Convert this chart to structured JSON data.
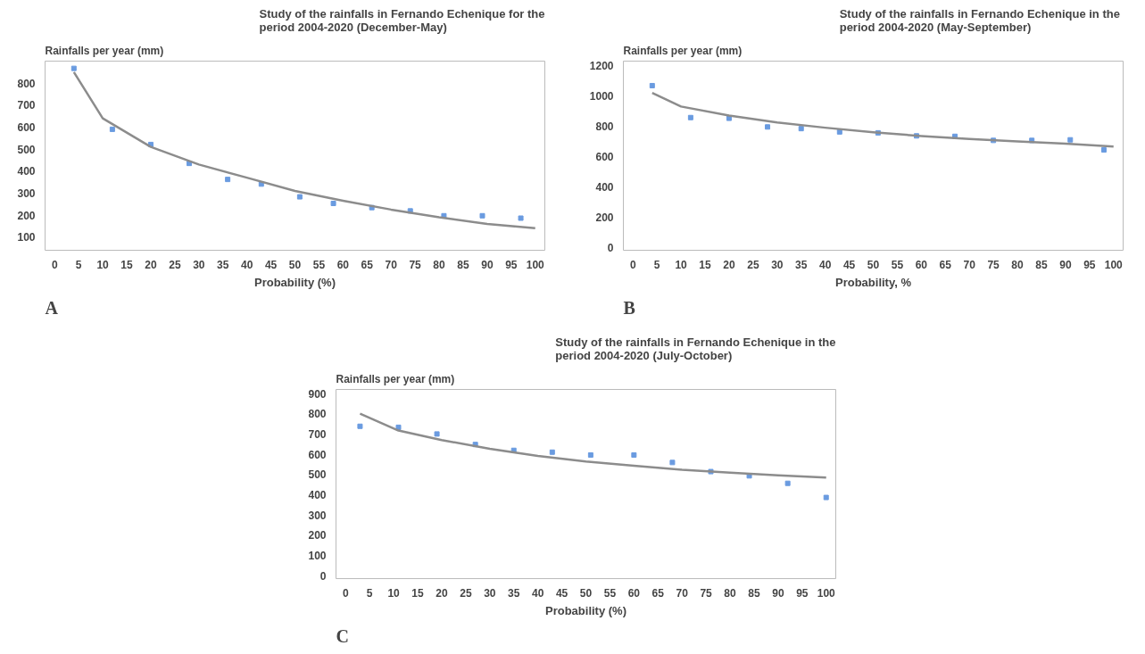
{
  "chart_data": [
    {
      "type": "scatter",
      "title": "Study of the rainfalls in Fernando Echenique for the period 2004-2020 (December-May)",
      "xlabel": "Probability (%)",
      "ylabel": "Rainfalls per year (mm)",
      "marker": "square",
      "xlim": [
        -2,
        102
      ],
      "xticks": [
        0,
        5,
        10,
        15,
        20,
        25,
        30,
        35,
        40,
        45,
        50,
        55,
        60,
        65,
        70,
        75,
        80,
        85,
        90,
        95,
        100
      ],
      "ylim": [
        40,
        900
      ],
      "yticks": [
        100,
        200,
        300,
        400,
        500,
        600,
        700,
        800
      ],
      "annotations": [
        "A"
      ],
      "series": [
        {
          "color": "#6a9be0",
          "x": [
            4,
            12,
            20,
            28,
            36,
            43,
            51,
            58,
            66,
            74,
            81,
            89,
            97
          ],
          "values": [
            867,
            590,
            521,
            435,
            362,
            341,
            283,
            253,
            234,
            219,
            197,
            197,
            186
          ]
        },
        {
          "type": "line",
          "marker": "none",
          "color": "#8c8c8c",
          "x": [
            4,
            10,
            20,
            30,
            40,
            50,
            60,
            70,
            80,
            90,
            100
          ],
          "values": [
            850,
            640,
            510,
            430,
            370,
            310,
            265,
            225,
            190,
            160,
            140
          ]
        }
      ]
    },
    {
      "type": "scatter",
      "title": "Study of the  rainfalls in Fernando Echenique in the period 2004-2020 (May-September)",
      "xlabel": "Probability, %",
      "ylabel": "Rainfalls per year (mm)",
      "marker": "square",
      "xlim": [
        -2,
        102
      ],
      "xticks": [
        0,
        5,
        10,
        15,
        20,
        25,
        30,
        35,
        40,
        45,
        50,
        55,
        60,
        65,
        70,
        75,
        80,
        85,
        90,
        95,
        100
      ],
      "ylim": [
        -20,
        1230
      ],
      "yticks": [
        0,
        200,
        400,
        600,
        800,
        1000,
        1200
      ],
      "annotations": [
        "B"
      ],
      "series": [
        {
          "color": "#6a9be0",
          "x": [
            4,
            12,
            20,
            28,
            35,
            43,
            51,
            59,
            67,
            75,
            83,
            91,
            98
          ],
          "values": [
            1068,
            857,
            852,
            795,
            784,
            762,
            756,
            736,
            733,
            706,
            706,
            710,
            643
          ]
        },
        {
          "type": "line",
          "marker": "none",
          "color": "#8c8c8c",
          "x": [
            4,
            10,
            20,
            30,
            40,
            50,
            60,
            70,
            80,
            90,
            100
          ],
          "values": [
            1020,
            930,
            870,
            825,
            790,
            760,
            735,
            715,
            700,
            685,
            665
          ]
        }
      ]
    },
    {
      "type": "scatter",
      "title": "Study of the rainfalls in Fernando Echenique in the period 2004-2020 (July-October)",
      "xlabel": "Probability (%)",
      "ylabel": "Rainfalls per year (mm)",
      "marker": "square",
      "xlim": [
        -2,
        102
      ],
      "xticks": [
        0,
        5,
        10,
        15,
        20,
        25,
        30,
        35,
        40,
        45,
        50,
        55,
        60,
        65,
        70,
        75,
        80,
        85,
        90,
        95,
        100
      ],
      "ylim": [
        -15,
        920
      ],
      "yticks": [
        0,
        100,
        200,
        300,
        400,
        500,
        600,
        700,
        800,
        900
      ],
      "annotations": [
        "C"
      ],
      "series": [
        {
          "color": "#6a9be0",
          "x": [
            3,
            11,
            19,
            27,
            35,
            43,
            51,
            60,
            68,
            76,
            84,
            92,
            100
          ],
          "values": [
            738,
            733,
            700,
            648,
            619,
            610,
            596,
            596,
            559,
            514,
            493,
            456,
            386
          ]
        },
        {
          "type": "line",
          "marker": "none",
          "color": "#8c8c8c",
          "x": [
            3,
            11,
            20,
            30,
            40,
            50,
            60,
            70,
            80,
            90,
            100
          ],
          "values": [
            800,
            717,
            670,
            627,
            591,
            564,
            543,
            523,
            509,
            496,
            485
          ]
        }
      ]
    }
  ]
}
